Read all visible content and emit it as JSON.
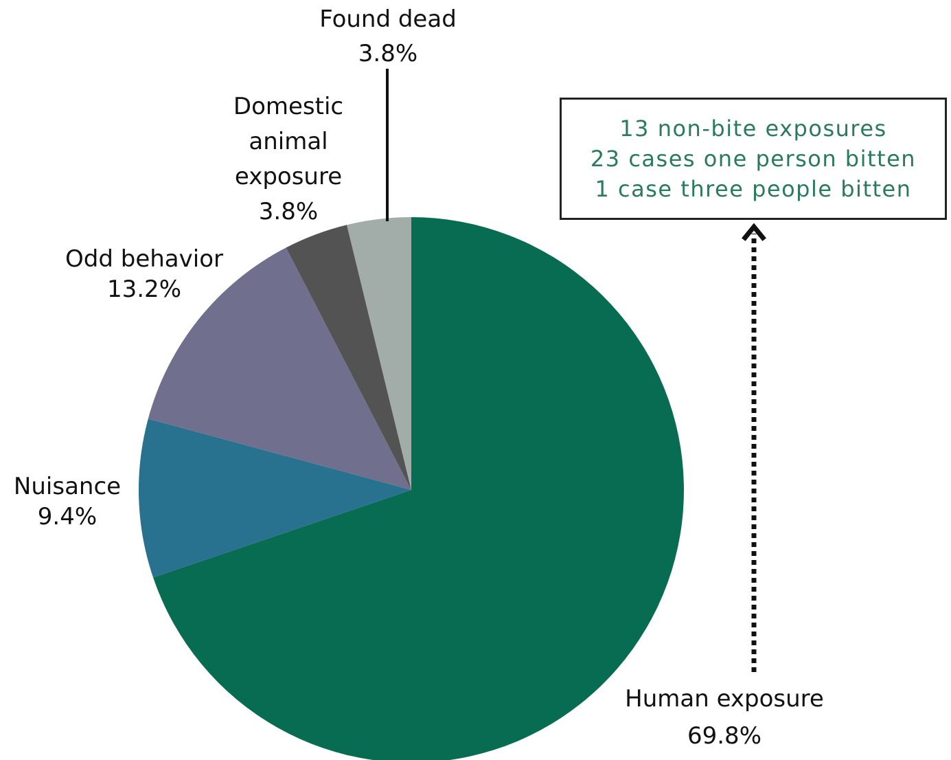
{
  "chart_data": {
    "type": "pie",
    "title": "",
    "unit": "%",
    "slices": [
      {
        "name": "Human exposure",
        "value": 69.8,
        "label": "69.8%",
        "color": "#086c52"
      },
      {
        "name": "Nuisance",
        "value": 9.4,
        "label": "9.4%",
        "color": "#287290"
      },
      {
        "name": "Odd behavior",
        "value": 13.2,
        "label": "13.2%",
        "color": "#706f8e"
      },
      {
        "name": "Domestic animal exposure",
        "value": 3.8,
        "label": "3.8%",
        "color": "#535353"
      },
      {
        "name": "Found dead",
        "value": 3.8,
        "label": "3.8%",
        "color": "#a2ada9"
      }
    ],
    "start_angle": "12 o'clock",
    "direction": "clockwise",
    "annotation": {
      "lines": [
        "13 non-bite exposures",
        "23 cases one person bitten",
        "1 case three people bitten"
      ],
      "text_color": "#2a7b5c",
      "points_to": "Human exposure"
    }
  }
}
